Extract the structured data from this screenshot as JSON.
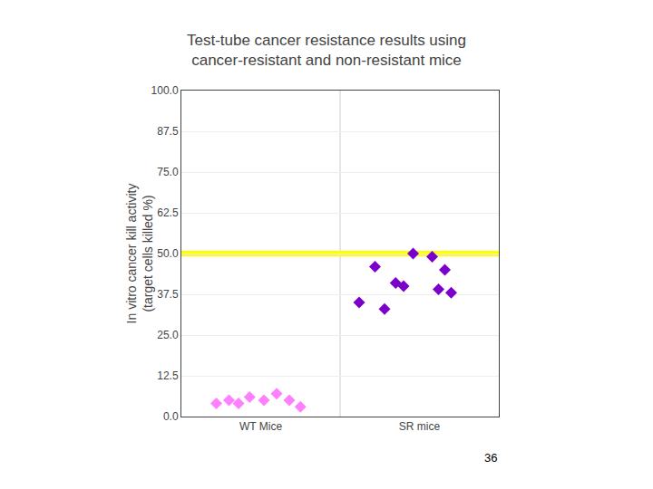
{
  "chart_data": {
    "type": "scatter",
    "title": "Test-tube cancer resistance results using\ncancer-resistant and non-resistant mice",
    "y_label": "In vitro cancer kill activity\n(target cells killed %)",
    "xlim": [
      0.5,
      2.5
    ],
    "xticks": [
      {
        "value": 1,
        "label": "WT Mice"
      },
      {
        "value": 2,
        "label": "SR mice"
      }
    ],
    "ylim": [
      0,
      100
    ],
    "yticks": [
      {
        "value": 0,
        "label": "0.0"
      },
      12.5,
      {
        "value": 25.0,
        "label": "25.0"
      },
      37.5,
      {
        "value": 50.0,
        "label": "50.0"
      },
      62.5,
      {
        "value": 75.0,
        "label": "75.0"
      },
      87.5,
      {
        "value": 100.0,
        "label": "100.0"
      }
    ],
    "grid": true,
    "legend": false,
    "hline": {
      "y": 50.0,
      "color": "yellow"
    },
    "vline": 1.5,
    "annotations": [
      "36"
    ],
    "series": [
      {
        "x": [
          0.72,
          0.8,
          0.86,
          0.93,
          1.02,
          1.1,
          1.18,
          1.25
        ],
        "values": [
          4,
          5,
          4,
          6,
          5,
          7,
          5,
          3
        ],
        "color": "#FF80FF",
        "marker": "diamond"
      },
      {
        "x": [
          1.62,
          1.72,
          1.78,
          1.85,
          1.9,
          1.96,
          2.08,
          2.16,
          2.12,
          2.2
        ],
        "values": [
          35,
          46,
          33,
          41,
          40,
          50,
          49,
          45,
          39,
          38
        ],
        "color": "#7B00CC",
        "marker": "diamond"
      }
    ]
  }
}
